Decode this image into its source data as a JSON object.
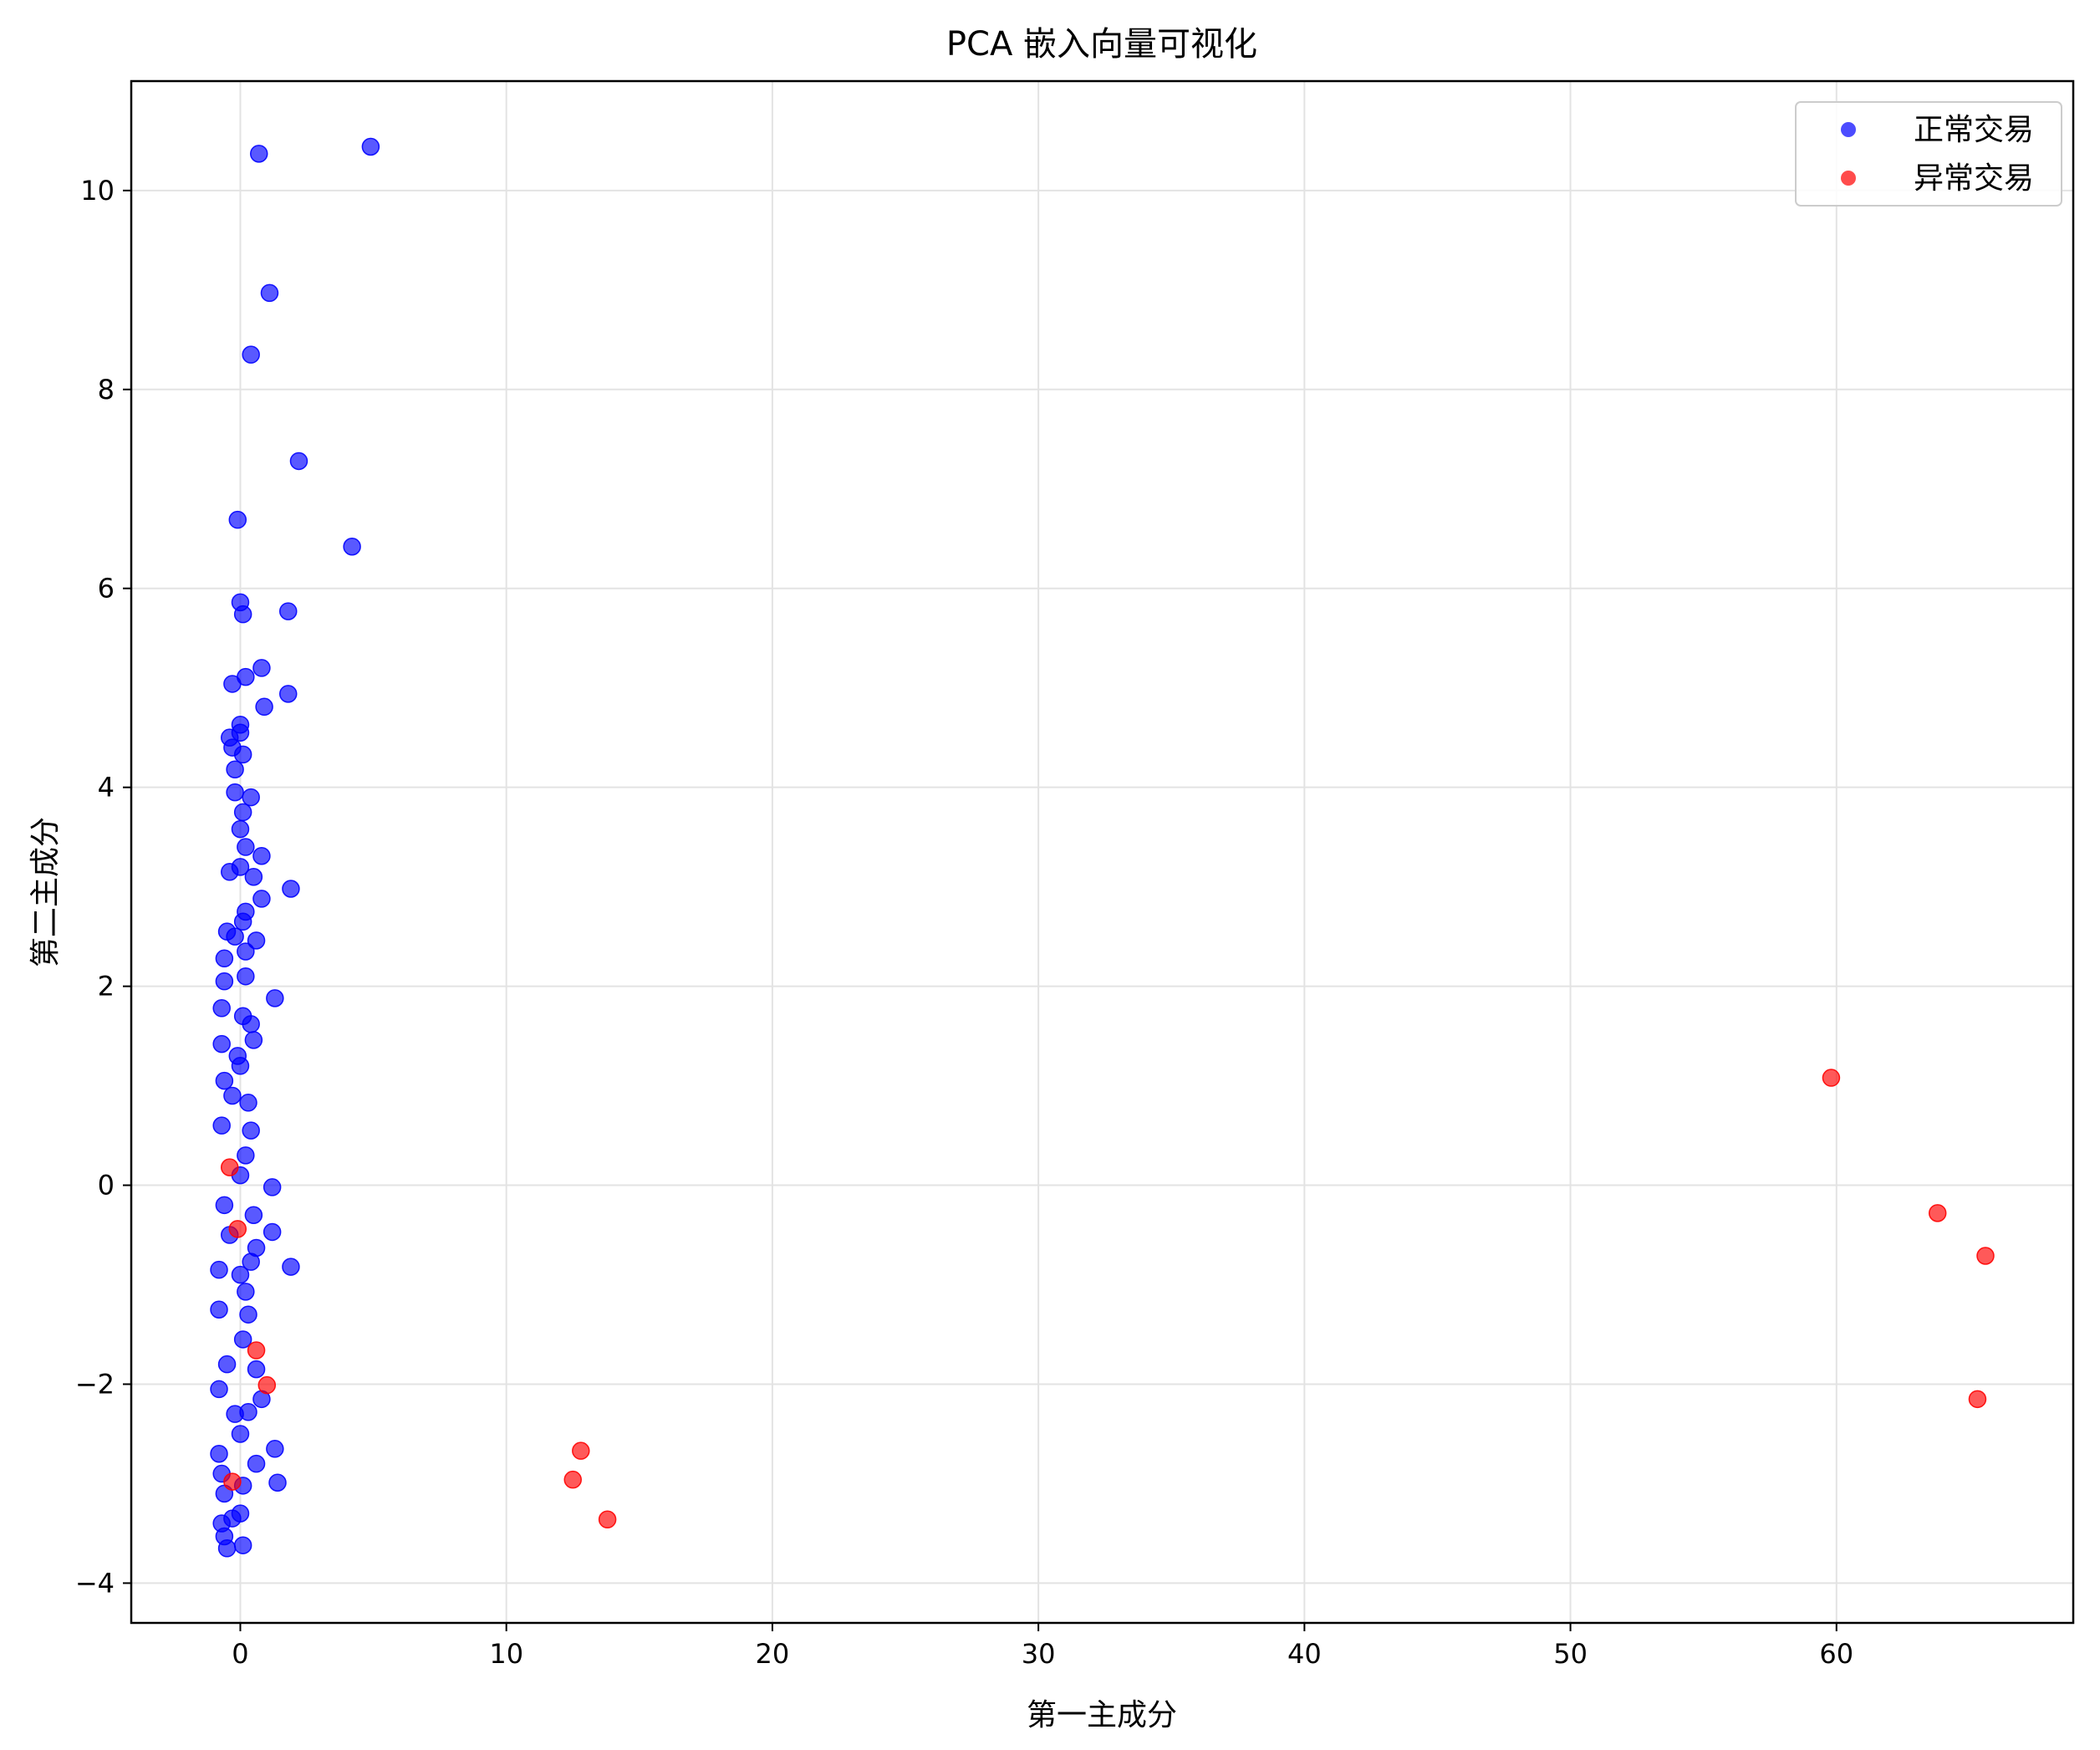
{
  "chart_data": {
    "type": "scatter",
    "title": "PCA 嵌入向量可视化",
    "xlabel": "第一主成分",
    "ylabel": "第二主成分",
    "xlim": [
      -4.1,
      68.9
    ],
    "ylim": [
      -4.4,
      11.1
    ],
    "xticks": [
      0,
      10,
      20,
      30,
      40,
      50,
      60
    ],
    "yticks": [
      -4,
      -2,
      0,
      2,
      4,
      6,
      8,
      10
    ],
    "xtick_labels": [
      "0",
      "10",
      "20",
      "30",
      "40",
      "50",
      "60"
    ],
    "ytick_labels": [
      "−4",
      "−2",
      "0",
      "2",
      "4",
      "6",
      "8",
      "10"
    ],
    "grid": true,
    "legend_position": "top-right",
    "series": [
      {
        "name": "正常交易",
        "color": "#0000ff",
        "points": [
          [
            0.7,
            10.37
          ],
          [
            4.9,
            10.44
          ],
          [
            1.1,
            8.97
          ],
          [
            0.4,
            8.35
          ],
          [
            2.2,
            7.28
          ],
          [
            -0.1,
            6.69
          ],
          [
            4.2,
            6.42
          ],
          [
            0.0,
            5.86
          ],
          [
            0.1,
            5.74
          ],
          [
            1.8,
            5.77
          ],
          [
            0.8,
            5.2
          ],
          [
            0.2,
            5.11
          ],
          [
            -0.3,
            5.04
          ],
          [
            1.8,
            4.94
          ],
          [
            0.9,
            4.81
          ],
          [
            0.0,
            4.63
          ],
          [
            -0.4,
            4.5
          ],
          [
            0.0,
            4.55
          ],
          [
            -0.3,
            4.4
          ],
          [
            0.1,
            4.33
          ],
          [
            -0.2,
            4.18
          ],
          [
            0.4,
            3.9
          ],
          [
            -0.2,
            3.95
          ],
          [
            0.1,
            3.75
          ],
          [
            0.0,
            3.58
          ],
          [
            0.8,
            3.31
          ],
          [
            0.2,
            3.4
          ],
          [
            -0.4,
            3.15
          ],
          [
            0.5,
            3.1
          ],
          [
            1.9,
            2.98
          ],
          [
            0.8,
            2.88
          ],
          [
            0.1,
            2.65
          ],
          [
            -0.5,
            2.55
          ],
          [
            0.6,
            2.46
          ],
          [
            0.2,
            2.35
          ],
          [
            -0.6,
            2.28
          ],
          [
            -0.6,
            2.05
          ],
          [
            0.2,
            2.1
          ],
          [
            1.3,
            1.88
          ],
          [
            -0.7,
            1.78
          ],
          [
            0.4,
            1.62
          ],
          [
            0.5,
            1.46
          ],
          [
            -0.7,
            1.42
          ],
          [
            0.0,
            1.2
          ],
          [
            -0.6,
            1.05
          ],
          [
            0.3,
            0.83
          ],
          [
            -0.7,
            0.6
          ],
          [
            0.4,
            0.55
          ],
          [
            0.2,
            0.3
          ],
          [
            1.2,
            -0.02
          ],
          [
            0.5,
            -0.3
          ],
          [
            1.2,
            -0.47
          ],
          [
            0.6,
            -0.63
          ],
          [
            0.4,
            -0.77
          ],
          [
            1.9,
            -0.82
          ],
          [
            -0.8,
            -0.85
          ],
          [
            0.2,
            -1.07
          ],
          [
            -0.8,
            -1.25
          ],
          [
            0.1,
            -1.55
          ],
          [
            0.6,
            -1.85
          ],
          [
            0.8,
            -2.15
          ],
          [
            -0.8,
            -2.05
          ],
          [
            0.3,
            -2.28
          ],
          [
            0.0,
            -2.5
          ],
          [
            1.3,
            -2.65
          ],
          [
            -0.8,
            -2.7
          ],
          [
            0.6,
            -2.8
          ],
          [
            -0.7,
            -2.9
          ],
          [
            1.4,
            -2.99
          ],
          [
            -0.6,
            -3.1
          ],
          [
            0.1,
            -3.02
          ],
          [
            -0.7,
            -3.4
          ],
          [
            -0.3,
            -3.35
          ],
          [
            -0.6,
            -3.53
          ],
          [
            0.1,
            -3.62
          ],
          [
            -0.5,
            -3.65
          ],
          [
            0.0,
            -3.3
          ],
          [
            -0.4,
            -0.5
          ],
          [
            0.0,
            0.1
          ],
          [
            -0.3,
            0.9
          ],
          [
            0.1,
            1.7
          ],
          [
            -0.2,
            2.5
          ],
          [
            0.0,
            3.2
          ],
          [
            -0.5,
            -1.8
          ],
          [
            -0.2,
            -2.3
          ],
          [
            0.3,
            -1.3
          ],
          [
            -0.6,
            -0.2
          ],
          [
            0.2,
            2.75
          ],
          [
            -0.1,
            1.3
          ],
          [
            0.0,
            -0.9
          ]
        ]
      },
      {
        "name": "异常交易",
        "color": "#ff0000",
        "points": [
          [
            59.8,
            1.08
          ],
          [
            63.8,
            -0.28
          ],
          [
            65.6,
            -0.71
          ],
          [
            65.3,
            -2.15
          ],
          [
            12.8,
            -2.67
          ],
          [
            12.5,
            -2.96
          ],
          [
            13.8,
            -3.36
          ],
          [
            -0.4,
            0.18
          ],
          [
            -0.1,
            -0.44
          ],
          [
            0.6,
            -1.66
          ],
          [
            1.0,
            -2.01
          ],
          [
            -0.3,
            -2.98
          ]
        ]
      }
    ]
  }
}
